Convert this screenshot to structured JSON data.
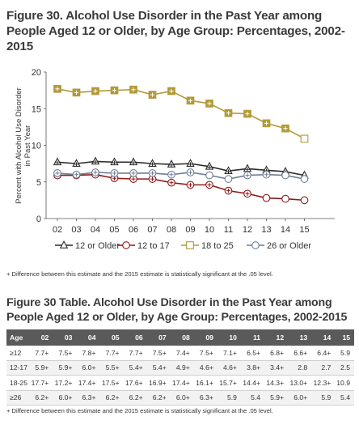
{
  "figure_title": "Figure 30. Alcohol Use Disorder in the Past Year among People Aged 12 or Older, by Age Group: Percentages, 2002-2015",
  "figure_note": "+ Difference between this estimate and the 2015 estimate is statistically significant at the .05 level.",
  "table_title": "Figure 30 Table. Alcohol Use Disorder in the Past Year among People Aged 12 or Older, by Age Group: Percentages, 2002-2015",
  "table_note": "+ Difference between this estimate and the 2015 estimate is statistically significant at the .05 level.",
  "chart_data": {
    "type": "line",
    "ylabel": "Percent with Alcohol Use Disorder in Past Year",
    "xlabel": "",
    "ylim": [
      0,
      20
    ],
    "yticks": [
      "0",
      "5",
      "10",
      "15",
      "20"
    ],
    "grid": false,
    "legend_position": "bottom",
    "categories": [
      "02",
      "03",
      "04",
      "05",
      "06",
      "07",
      "08",
      "09",
      "10",
      "11",
      "12",
      "13",
      "14",
      "15"
    ],
    "series": [
      {
        "name": "12 or Older",
        "marker": "triangle",
        "color": "#2b2b2b",
        "values": [
          7.7,
          7.5,
          7.8,
          7.7,
          7.7,
          7.5,
          7.4,
          7.5,
          7.1,
          6.5,
          6.8,
          6.6,
          6.4,
          5.9
        ]
      },
      {
        "name": "12 to 17",
        "marker": "circle",
        "color": "#8b1a1a",
        "values": [
          5.9,
          5.9,
          6.0,
          5.5,
          5.4,
          5.4,
          4.9,
          4.6,
          4.6,
          3.8,
          3.4,
          2.8,
          2.7,
          2.5
        ]
      },
      {
        "name": "18 to 25",
        "marker": "square",
        "color": "#b29a3a",
        "values": [
          17.7,
          17.2,
          17.4,
          17.5,
          17.6,
          16.9,
          17.4,
          16.1,
          15.7,
          14.4,
          14.3,
          13.0,
          12.3,
          10.9
        ]
      },
      {
        "name": "26 or Older",
        "marker": "circle",
        "color": "#6f7f96",
        "values": [
          6.2,
          6.0,
          6.3,
          6.2,
          6.2,
          6.2,
          6.0,
          6.3,
          5.9,
          5.4,
          5.9,
          6.0,
          5.9,
          5.4
        ]
      }
    ]
  },
  "table": {
    "header": [
      "Age",
      "02",
      "03",
      "04",
      "05",
      "06",
      "07",
      "08",
      "09",
      "10",
      "11",
      "12",
      "13",
      "14",
      "15"
    ],
    "rows": [
      [
        "≥12",
        "7.7+",
        "7.5+",
        "7.8+",
        "7.7+",
        "7.7+",
        "7.5+",
        "7.4+",
        "7.5+",
        "7.1+",
        "6.5+",
        "6.8+",
        "6.6+",
        "6.4+",
        "5.9"
      ],
      [
        "12-17",
        "5.9+",
        "5.9+",
        "6.0+",
        "5.5+",
        "5.4+",
        "5.4+",
        "4.9+",
        "4.6+",
        "4.6+",
        "3.8+",
        "3.4+",
        "2.8",
        "2.7",
        "2.5"
      ],
      [
        "18-25",
        "17.7+",
        "17.2+",
        "17.4+",
        "17.5+",
        "17.6+",
        "16.9+",
        "17.4+",
        "16.1+",
        "15.7+",
        "14.4+",
        "14.3+",
        "13.0+",
        "12.3+",
        "10.9"
      ],
      [
        "≥26",
        "6.2+",
        "6.0+",
        "6.3+",
        "6.2+",
        "6.2+",
        "6.2+",
        "6.0+",
        "6.3+",
        "5.9",
        "5.4",
        "5.9+",
        "6.0+",
        "5.9",
        "5.4"
      ]
    ]
  }
}
